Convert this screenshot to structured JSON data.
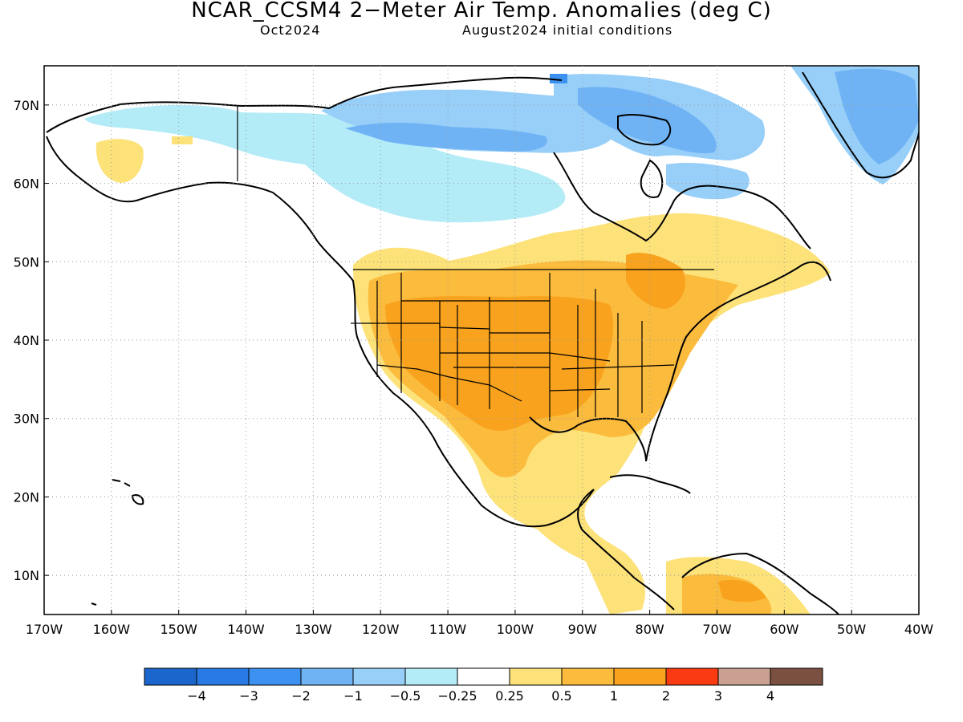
{
  "header": {
    "title": "NCAR_CCSM4 2−Meter Air Temp. Anomalies (deg C)",
    "valid_month": "Oct2024",
    "initial_conditions": "August2024 initial conditions"
  },
  "map": {
    "lon_range": [
      -170,
      -40
    ],
    "lat_range": [
      5,
      75
    ],
    "gridlines": "dotted",
    "lon_labels": [
      "170W",
      "160W",
      "150W",
      "140W",
      "130W",
      "120W",
      "110W",
      "100W",
      "90W",
      "80W",
      "70W",
      "60W",
      "50W",
      "40W"
    ],
    "lat_labels": [
      "10N",
      "20N",
      "30N",
      "40N",
      "50N",
      "60N",
      "70N"
    ]
  },
  "legend": {
    "colors": [
      "#1a66cc",
      "#2a7ae6",
      "#3d91f0",
      "#6fb3f5",
      "#98cff9",
      "#b3ecf7",
      "#ffffff",
      "#fde27a",
      "#fbbb3c",
      "#f8a21e",
      "#fa3a10",
      "#c9a092",
      "#7a5040"
    ],
    "labels": [
      "−4",
      "−3",
      "−2",
      "−1",
      "−0.5",
      "−0.25",
      "0.25",
      "0.5",
      "1",
      "2",
      "3",
      "4"
    ]
  }
}
